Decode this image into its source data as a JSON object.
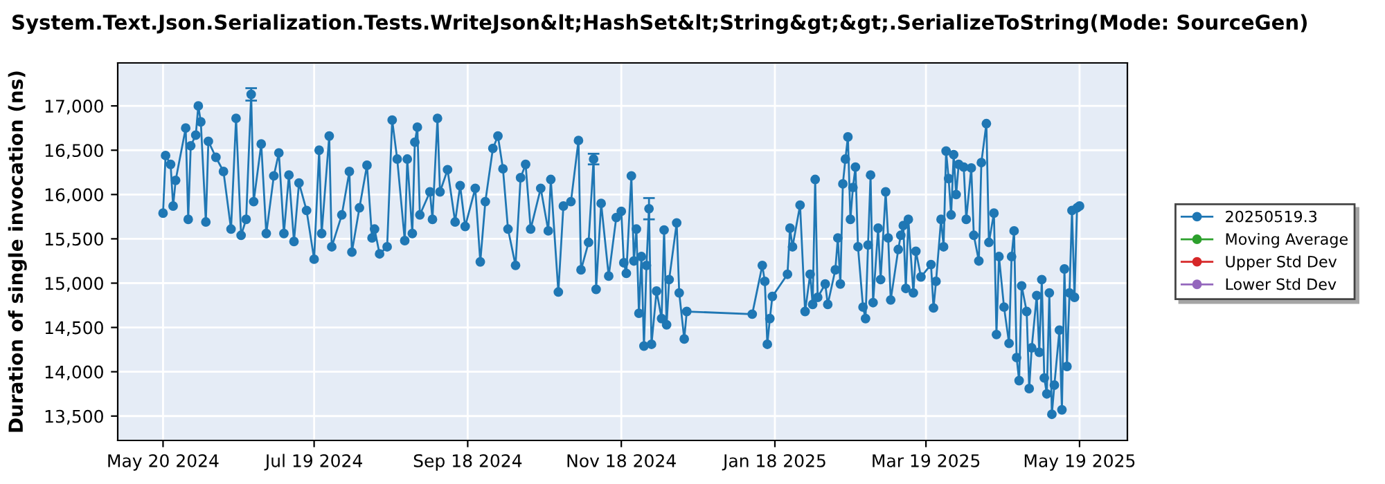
{
  "chart_data": {
    "type": "line",
    "title": "System.Text.Json.Serialization.Tests.WriteJson&lt;HashSet&lt;String&gt;&gt;.SerializeToString(Mode: SourceGen)",
    "ylabel": "Duration of single invocation (ns)",
    "xlim": [
      "2024-05-02",
      "2025-06-07"
    ],
    "xticks": [
      {
        "value": "2024-05-20",
        "label": "May 20 2024"
      },
      {
        "value": "2024-07-19",
        "label": "Jul 19 2024"
      },
      {
        "value": "2024-09-18",
        "label": "Sep 18 2024"
      },
      {
        "value": "2024-11-18",
        "label": "Nov 18 2024"
      },
      {
        "value": "2025-01-18",
        "label": "Jan 18 2025"
      },
      {
        "value": "2025-03-19",
        "label": "Mar 19 2025"
      },
      {
        "value": "2025-05-19",
        "label": "May 19 2025"
      }
    ],
    "ylim": [
      13225,
      17485
    ],
    "yticks": [
      {
        "value": 13500,
        "label": "13,500"
      },
      {
        "value": 14000,
        "label": "14,000"
      },
      {
        "value": 14500,
        "label": "14,500"
      },
      {
        "value": 15000,
        "label": "15,000"
      },
      {
        "value": 15500,
        "label": "15,500"
      },
      {
        "value": 16000,
        "label": "16,000"
      },
      {
        "value": 16500,
        "label": "16,500"
      },
      {
        "value": 17000,
        "label": "17,000"
      }
    ],
    "grid": true,
    "legend": "right",
    "marker": "circle",
    "line_style": "solid",
    "x": [
      "2024-05-20",
      "2024-05-21",
      "2024-05-23",
      "2024-05-24",
      "2024-05-25",
      "2024-05-29",
      "2024-05-30",
      "2024-05-31",
      "2024-06-02",
      "2024-06-03",
      "2024-06-04",
      "2024-06-06",
      "2024-06-07",
      "2024-06-10",
      "2024-06-13",
      "2024-06-16",
      "2024-06-18",
      "2024-06-20",
      "2024-06-22",
      "2024-06-24",
      "2024-06-25",
      "2024-06-28",
      "2024-06-30",
      "2024-07-03",
      "2024-07-05",
      "2024-07-07",
      "2024-07-09",
      "2024-07-11",
      "2024-07-13",
      "2024-07-16",
      "2024-07-19",
      "2024-07-21",
      "2024-07-22",
      "2024-07-25",
      "2024-07-26",
      "2024-07-30",
      "2024-08-02",
      "2024-08-03",
      "2024-08-06",
      "2024-08-09",
      "2024-08-11",
      "2024-08-12",
      "2024-08-14",
      "2024-08-17",
      "2024-08-19",
      "2024-08-21",
      "2024-08-24",
      "2024-08-25",
      "2024-08-27",
      "2024-08-28",
      "2024-08-29",
      "2024-08-30",
      "2024-09-03",
      "2024-09-04",
      "2024-09-06",
      "2024-09-07",
      "2024-09-10",
      "2024-09-13",
      "2024-09-15",
      "2024-09-17",
      "2024-09-21",
      "2024-09-23",
      "2024-09-25",
      "2024-09-28",
      "2024-09-30",
      "2024-10-02",
      "2024-10-04",
      "2024-10-07",
      "2024-10-09",
      "2024-10-11",
      "2024-10-13",
      "2024-10-17",
      "2024-10-20",
      "2024-10-21",
      "2024-10-24",
      "2024-10-26",
      "2024-10-29",
      "2024-11-01",
      "2024-11-02",
      "2024-11-05",
      "2024-11-07",
      "2024-11-08",
      "2024-11-10",
      "2024-11-13",
      "2024-11-16",
      "2024-11-18",
      "2024-11-19",
      "2024-11-20",
      "2024-11-22",
      "2024-11-23",
      "2024-11-24",
      "2024-11-25",
      "2024-11-26",
      "2024-11-27",
      "2024-11-28",
      "2024-11-29",
      "2024-11-30",
      "2024-12-02",
      "2024-12-04",
      "2024-12-05",
      "2024-12-06",
      "2024-12-07",
      "2024-12-10",
      "2024-12-11",
      "2024-12-13",
      "2024-12-14",
      "2025-01-09",
      "2025-01-13",
      "2025-01-14",
      "2025-01-15",
      "2025-01-16",
      "2025-01-17",
      "2025-01-23",
      "2025-01-24",
      "2025-01-25",
      "2025-01-28",
      "2025-01-30",
      "2025-02-01",
      "2025-02-02",
      "2025-02-03",
      "2025-02-04",
      "2025-02-07",
      "2025-02-08",
      "2025-02-11",
      "2025-02-12",
      "2025-02-13",
      "2025-02-14",
      "2025-02-15",
      "2025-02-16",
      "2025-02-17",
      "2025-02-18",
      "2025-02-19",
      "2025-02-20",
      "2025-02-22",
      "2025-02-23",
      "2025-02-24",
      "2025-02-25",
      "2025-02-26",
      "2025-02-28",
      "2025-03-01",
      "2025-03-03",
      "2025-03-04",
      "2025-03-05",
      "2025-03-08",
      "2025-03-09",
      "2025-03-10",
      "2025-03-11",
      "2025-03-12",
      "2025-03-14",
      "2025-03-15",
      "2025-03-17",
      "2025-03-21",
      "2025-03-22",
      "2025-03-23",
      "2025-03-25",
      "2025-03-26",
      "2025-03-27",
      "2025-03-28",
      "2025-03-29",
      "2025-03-30",
      "2025-03-31",
      "2025-04-01",
      "2025-04-03",
      "2025-04-04",
      "2025-04-06",
      "2025-04-07",
      "2025-04-09",
      "2025-04-10",
      "2025-04-12",
      "2025-04-13",
      "2025-04-15",
      "2025-04-16",
      "2025-04-17",
      "2025-04-19",
      "2025-04-21",
      "2025-04-22",
      "2025-04-23",
      "2025-04-24",
      "2025-04-25",
      "2025-04-26",
      "2025-04-28",
      "2025-04-29",
      "2025-04-30",
      "2025-05-02",
      "2025-05-03",
      "2025-05-04",
      "2025-05-05",
      "2025-05-06",
      "2025-05-07",
      "2025-05-08",
      "2025-05-09",
      "2025-05-11",
      "2025-05-12",
      "2025-05-13",
      "2025-05-14",
      "2025-05-15",
      "2025-05-16",
      "2025-05-17",
      "2025-05-18",
      "2025-05-19"
    ],
    "series": [
      {
        "name": "20250519.3",
        "color": "#1f77b4",
        "values": [
          15790,
          16440,
          16340,
          15870,
          16160,
          16750,
          15720,
          16550,
          16670,
          17000,
          16820,
          15690,
          16600,
          16420,
          16260,
          15610,
          16860,
          15540,
          15720,
          17130,
          15920,
          16570,
          15560,
          16210,
          16470,
          15560,
          16220,
          15470,
          16130,
          15820,
          15270,
          16500,
          15560,
          16660,
          15410,
          15770,
          16260,
          15350,
          15850,
          16330,
          15510,
          15610,
          15330,
          15410,
          16840,
          16400,
          15480,
          16400,
          15560,
          16590,
          16760,
          15770,
          16030,
          15720,
          16860,
          16030,
          16280,
          15690,
          16100,
          15640,
          16070,
          15240,
          15920,
          16520,
          16660,
          16290,
          15610,
          15200,
          16190,
          16340,
          15610,
          16070,
          15590,
          16170,
          14900,
          15870,
          15920,
          16610,
          15150,
          15460,
          16400,
          14930,
          15900,
          15080,
          15740,
          15810,
          15230,
          15110,
          16210,
          15250,
          15610,
          14660,
          15300,
          14290,
          15200,
          15840,
          14310,
          14910,
          14600,
          15600,
          14530,
          15040,
          15680,
          14890,
          14370,
          14680,
          14650,
          15200,
          15020,
          14310,
          14600,
          14850,
          15100,
          15620,
          15410,
          15880,
          14680,
          15100,
          14760,
          16170,
          14840,
          14990,
          14760,
          15150,
          15510,
          14990,
          16120,
          16400,
          16650,
          15720,
          16080,
          16310,
          15410,
          14730,
          14600,
          15430,
          16220,
          14780,
          15620,
          15040,
          16030,
          15510,
          14810,
          15380,
          15540,
          15650,
          14940,
          15720,
          14890,
          15360,
          15070,
          15210,
          14720,
          15020,
          15720,
          15410,
          16490,
          16180,
          15770,
          16450,
          16000,
          16340,
          16310,
          15720,
          16300,
          15540,
          15250,
          16360,
          16800,
          15460,
          15790,
          14420,
          15300,
          14730,
          14320,
          15300,
          15590,
          14160,
          13900,
          14970,
          14680,
          13810,
          14270,
          14860,
          14220,
          15040,
          13930,
          13750,
          14890,
          13520,
          13850,
          14470,
          13570,
          15160,
          14060,
          14890,
          15820,
          14840,
          15850,
          15870
        ],
        "errors": [
          null,
          null,
          null,
          null,
          null,
          null,
          null,
          null,
          null,
          null,
          null,
          null,
          null,
          null,
          null,
          null,
          null,
          null,
          null,
          70,
          null,
          null,
          null,
          null,
          null,
          null,
          null,
          null,
          null,
          null,
          null,
          null,
          null,
          null,
          null,
          null,
          null,
          null,
          null,
          null,
          null,
          null,
          null,
          null,
          null,
          null,
          null,
          null,
          null,
          null,
          null,
          null,
          null,
          null,
          null,
          null,
          null,
          null,
          null,
          null,
          null,
          null,
          null,
          null,
          null,
          null,
          null,
          null,
          null,
          null,
          null,
          null,
          null,
          null,
          null,
          null,
          null,
          null,
          null,
          null,
          60,
          null,
          null,
          null,
          null,
          null,
          null,
          null,
          null,
          null,
          null,
          null,
          null,
          null,
          null,
          120,
          null,
          null,
          null,
          null,
          null,
          null,
          null,
          null,
          null,
          null,
          null,
          null,
          null,
          null,
          null,
          null,
          null,
          null,
          null,
          null,
          null,
          null,
          null,
          null,
          null,
          null,
          null,
          null,
          null,
          null,
          null,
          null,
          null,
          null,
          null,
          null,
          null,
          null,
          null,
          null,
          null,
          null,
          null,
          null,
          null,
          null,
          null,
          null,
          null,
          null,
          null,
          null,
          null,
          null,
          null,
          null,
          null,
          null,
          null,
          null,
          null,
          null,
          null,
          null,
          null,
          null,
          null,
          null,
          null,
          null,
          null,
          null,
          null,
          null,
          null,
          null,
          null,
          null,
          null,
          null,
          null,
          null,
          null,
          null,
          null,
          null,
          null,
          null,
          null,
          null,
          null,
          null,
          null,
          null,
          null,
          null,
          null,
          null,
          null,
          null,
          null,
          null,
          null,
          null
        ]
      },
      {
        "name": "Moving Average",
        "color": "#2ca02c",
        "values": [
          null,
          null,
          null,
          null,
          null,
          null,
          null,
          null,
          null,
          null,
          null,
          null,
          null,
          null,
          null,
          null,
          null,
          null,
          null,
          null,
          null,
          null,
          null,
          null,
          null,
          null,
          null,
          null,
          null,
          null,
          null,
          null,
          null,
          null,
          null,
          null,
          null,
          null,
          null,
          null,
          null,
          null,
          null,
          null,
          null,
          null,
          null,
          null,
          null,
          null,
          null,
          null,
          null,
          null,
          null,
          null,
          null,
          null,
          null,
          null,
          null,
          null,
          null,
          null,
          null,
          null,
          null,
          null,
          null,
          null,
          null,
          null,
          null,
          null,
          null,
          null,
          null,
          null,
          null,
          null,
          null,
          null,
          null,
          null,
          null,
          null,
          null,
          null,
          null,
          null,
          null,
          null,
          null,
          null,
          null,
          null,
          null,
          null,
          null,
          null,
          null,
          null,
          null,
          null,
          null,
          null,
          null,
          null,
          null,
          null,
          null,
          null,
          null,
          null,
          null,
          null,
          null,
          null,
          null,
          null,
          null,
          null,
          null,
          null,
          null,
          null,
          null,
          null,
          null,
          null,
          null,
          null,
          null,
          null,
          null,
          null,
          null,
          null,
          null,
          null,
          null,
          null,
          null,
          null,
          null,
          null,
          null,
          null,
          null,
          null,
          null,
          null,
          null,
          null,
          null,
          null,
          null,
          null,
          null,
          null,
          null,
          null,
          null,
          null,
          null,
          null,
          null,
          null,
          null,
          null,
          null,
          null,
          null,
          null,
          null,
          null,
          null,
          null,
          null,
          null,
          null,
          null,
          null,
          null,
          null,
          null,
          null,
          null,
          null,
          null,
          null,
          null,
          null,
          null,
          null,
          null,
          null,
          null,
          null,
          null
        ]
      },
      {
        "name": "Upper Std Dev",
        "color": "#d62728",
        "values": [
          null,
          null,
          null,
          null,
          null,
          null,
          null,
          null,
          null,
          null,
          null,
          null,
          null,
          null,
          null,
          null,
          null,
          null,
          null,
          null,
          null,
          null,
          null,
          null,
          null,
          null,
          null,
          null,
          null,
          null,
          null,
          null,
          null,
          null,
          null,
          null,
          null,
          null,
          null,
          null,
          null,
          null,
          null,
          null,
          null,
          null,
          null,
          null,
          null,
          null,
          null,
          null,
          null,
          null,
          null,
          null,
          null,
          null,
          null,
          null,
          null,
          null,
          null,
          null,
          null,
          null,
          null,
          null,
          null,
          null,
          null,
          null,
          null,
          null,
          null,
          null,
          null,
          null,
          null,
          null,
          null,
          null,
          null,
          null,
          null,
          null,
          null,
          null,
          null,
          null,
          null,
          null,
          null,
          null,
          null,
          null,
          null,
          null,
          null,
          null,
          null,
          null,
          null,
          null,
          null,
          null,
          null,
          null,
          null,
          null,
          null,
          null,
          null,
          null,
          null,
          null,
          null,
          null,
          null,
          null,
          null,
          null,
          null,
          null,
          null,
          null,
          null,
          null,
          null,
          null,
          null,
          null,
          null,
          null,
          null,
          null,
          null,
          null,
          null,
          null,
          null,
          null,
          null,
          null,
          null,
          null,
          null,
          null,
          null,
          null,
          null,
          null,
          null,
          null,
          null,
          null,
          null,
          null,
          null,
          null,
          null,
          null,
          null,
          null,
          null,
          null,
          null,
          null,
          null,
          null,
          null,
          null,
          null,
          null,
          null,
          null,
          null,
          null,
          null,
          null,
          null,
          null,
          null,
          null,
          null,
          null,
          null,
          null,
          null,
          null,
          null,
          null,
          null,
          null,
          null,
          null,
          null,
          null,
          null,
          null
        ]
      },
      {
        "name": "Lower Std Dev",
        "color": "#9467bd",
        "values": [
          null,
          null,
          null,
          null,
          null,
          null,
          null,
          null,
          null,
          null,
          null,
          null,
          null,
          null,
          null,
          null,
          null,
          null,
          null,
          null,
          null,
          null,
          null,
          null,
          null,
          null,
          null,
          null,
          null,
          null,
          null,
          null,
          null,
          null,
          null,
          null,
          null,
          null,
          null,
          null,
          null,
          null,
          null,
          null,
          null,
          null,
          null,
          null,
          null,
          null,
          null,
          null,
          null,
          null,
          null,
          null,
          null,
          null,
          null,
          null,
          null,
          null,
          null,
          null,
          null,
          null,
          null,
          null,
          null,
          null,
          null,
          null,
          null,
          null,
          null,
          null,
          null,
          null,
          null,
          null,
          null,
          null,
          null,
          null,
          null,
          null,
          null,
          null,
          null,
          null,
          null,
          null,
          null,
          null,
          null,
          null,
          null,
          null,
          null,
          null,
          null,
          null,
          null,
          null,
          null,
          null,
          null,
          null,
          null,
          null,
          null,
          null,
          null,
          null,
          null,
          null,
          null,
          null,
          null,
          null,
          null,
          null,
          null,
          null,
          null,
          null,
          null,
          null,
          null,
          null,
          null,
          null,
          null,
          null,
          null,
          null,
          null,
          null,
          null,
          null,
          null,
          null,
          null,
          null,
          null,
          null,
          null,
          null,
          null,
          null,
          null,
          null,
          null,
          null,
          null,
          null,
          null,
          null,
          null,
          null,
          null,
          null,
          null,
          null,
          null,
          null,
          null,
          null,
          null,
          null,
          null,
          null,
          null,
          null,
          null,
          null,
          null,
          null,
          null,
          null,
          null,
          null,
          null,
          null,
          null,
          null,
          null,
          null,
          null,
          null,
          null,
          null,
          null,
          null,
          null,
          null,
          null,
          null,
          null,
          null
        ]
      }
    ]
  }
}
